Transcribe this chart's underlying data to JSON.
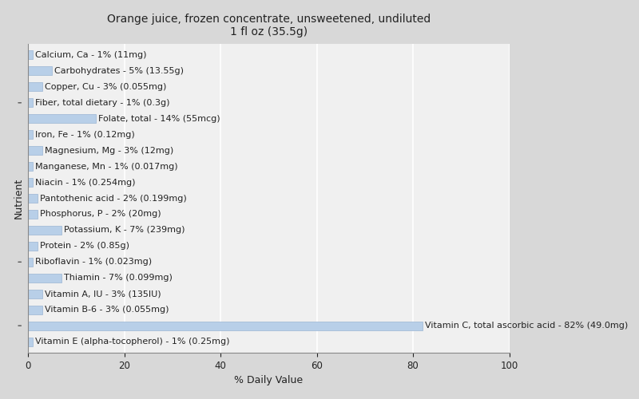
{
  "title": "Orange juice, frozen concentrate, unsweetened, undiluted\n1 fl oz (35.5g)",
  "xlabel": "% Daily Value",
  "ylabel": "Nutrient",
  "nutrients": [
    "Calcium, Ca - 1% (11mg)",
    "Carbohydrates - 5% (13.55g)",
    "Copper, Cu - 3% (0.055mg)",
    "Fiber, total dietary - 1% (0.3g)",
    "Folate, total - 14% (55mcg)",
    "Iron, Fe - 1% (0.12mg)",
    "Magnesium, Mg - 3% (12mg)",
    "Manganese, Mn - 1% (0.017mg)",
    "Niacin - 1% (0.254mg)",
    "Pantothenic acid - 2% (0.199mg)",
    "Phosphorus, P - 2% (20mg)",
    "Potassium, K - 7% (239mg)",
    "Protein - 2% (0.85g)",
    "Riboflavin - 1% (0.023mg)",
    "Thiamin - 7% (0.099mg)",
    "Vitamin A, IU - 3% (135IU)",
    "Vitamin B-6 - 3% (0.055mg)",
    "Vitamin C, total ascorbic acid - 82% (49.0mg)",
    "Vitamin E (alpha-tocopherol) - 1% (0.25mg)"
  ],
  "values": [
    1,
    5,
    3,
    1,
    14,
    1,
    3,
    1,
    1,
    2,
    2,
    7,
    2,
    1,
    7,
    3,
    3,
    82,
    1
  ],
  "bar_color": "#b8cfe8",
  "bar_edge_color": "#9ab4d4",
  "text_color": "#222222",
  "background_color": "#d8d8d8",
  "plot_background": "#f0f0f0",
  "grid_color": "#ffffff",
  "xlim": [
    0,
    100
  ],
  "xticks": [
    0,
    20,
    40,
    60,
    80,
    100
  ],
  "title_fontsize": 10,
  "axis_label_fontsize": 9,
  "tick_fontsize": 8.5,
  "bar_label_fontsize": 8,
  "bar_height": 0.55,
  "ytick_rows": [
    3,
    8,
    13,
    17
  ]
}
